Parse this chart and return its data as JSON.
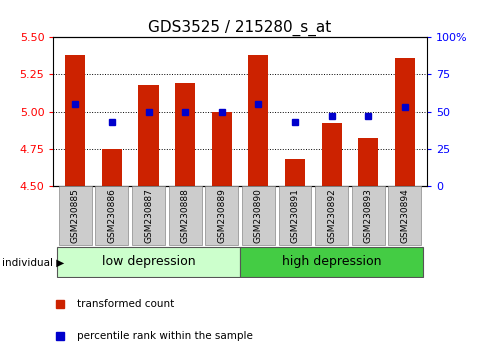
{
  "title": "GDS3525 / 215280_s_at",
  "samples": [
    "GSM230885",
    "GSM230886",
    "GSM230887",
    "GSM230888",
    "GSM230889",
    "GSM230890",
    "GSM230891",
    "GSM230892",
    "GSM230893",
    "GSM230894"
  ],
  "red_values": [
    5.38,
    4.75,
    5.18,
    5.19,
    5.0,
    5.38,
    4.68,
    4.92,
    4.82,
    5.36
  ],
  "blue_percentiles": [
    55,
    43,
    50,
    50,
    50,
    55,
    43,
    47,
    47,
    53
  ],
  "ylim_left": [
    4.5,
    5.5
  ],
  "ylim_right": [
    0,
    100
  ],
  "yticks_left": [
    4.5,
    4.75,
    5.0,
    5.25,
    5.5
  ],
  "yticks_right": [
    0,
    25,
    50,
    75,
    100
  ],
  "group1_label": "low depression",
  "group2_label": "high depression",
  "group1_count": 5,
  "group2_count": 5,
  "individual_label": "individual",
  "legend_red": "transformed count",
  "legend_blue": "percentile rank within the sample",
  "bar_color": "#cc2200",
  "dot_color": "#0000cc",
  "group1_bg": "#ccffcc",
  "group2_bg": "#44cc44",
  "tick_bg": "#cccccc",
  "title_fontsize": 11,
  "bar_width": 0.55,
  "grid_lines": [
    4.75,
    5.0,
    5.25
  ]
}
